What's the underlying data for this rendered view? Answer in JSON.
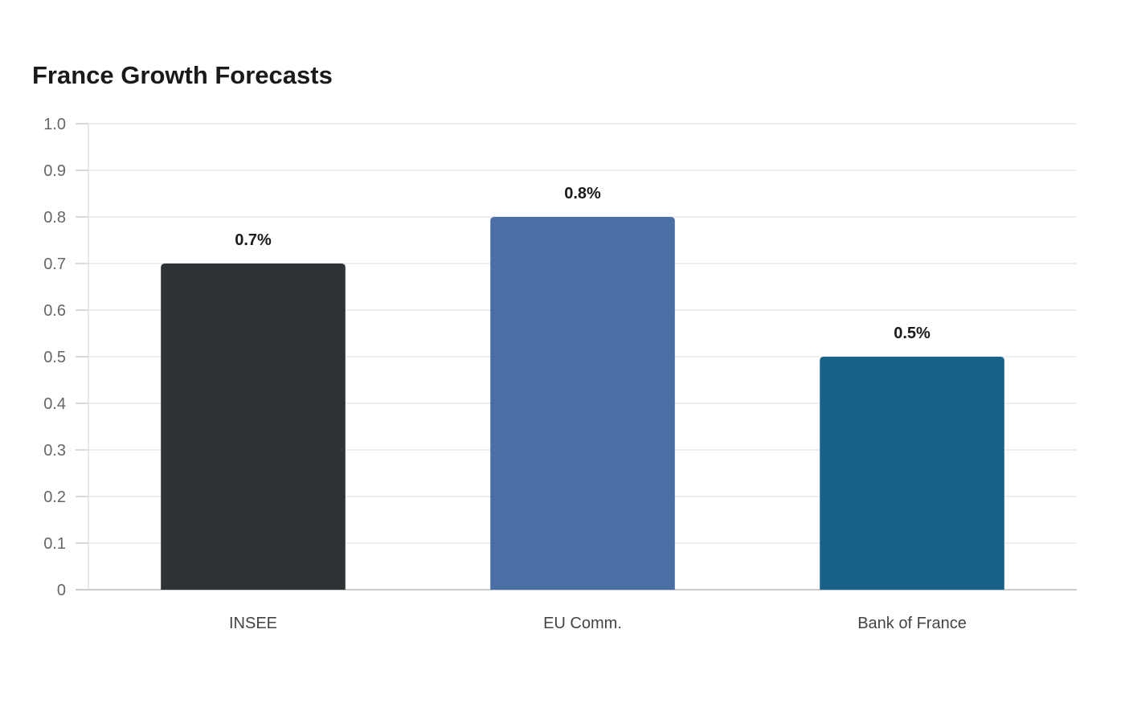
{
  "chart_data": {
    "type": "bar",
    "title": "France Growth Forecasts",
    "xlabel": "",
    "ylabel": "",
    "categories": [
      "INSEE",
      "EU Comm.",
      "Bank of France"
    ],
    "values": [
      0.7,
      0.8,
      0.5
    ],
    "data_labels": [
      "0.7%",
      "0.8%",
      "0.5%"
    ],
    "colors": [
      "#2e3436",
      "#4a6fa5",
      "#186289"
    ],
    "ylim": [
      0,
      1.0
    ],
    "yticks": [
      "0",
      "0.1",
      "0.2",
      "0.3",
      "0.4",
      "0.5",
      "0.6",
      "0.7",
      "0.8",
      "0.9",
      "1.0"
    ],
    "grid": true,
    "legend": "none"
  }
}
